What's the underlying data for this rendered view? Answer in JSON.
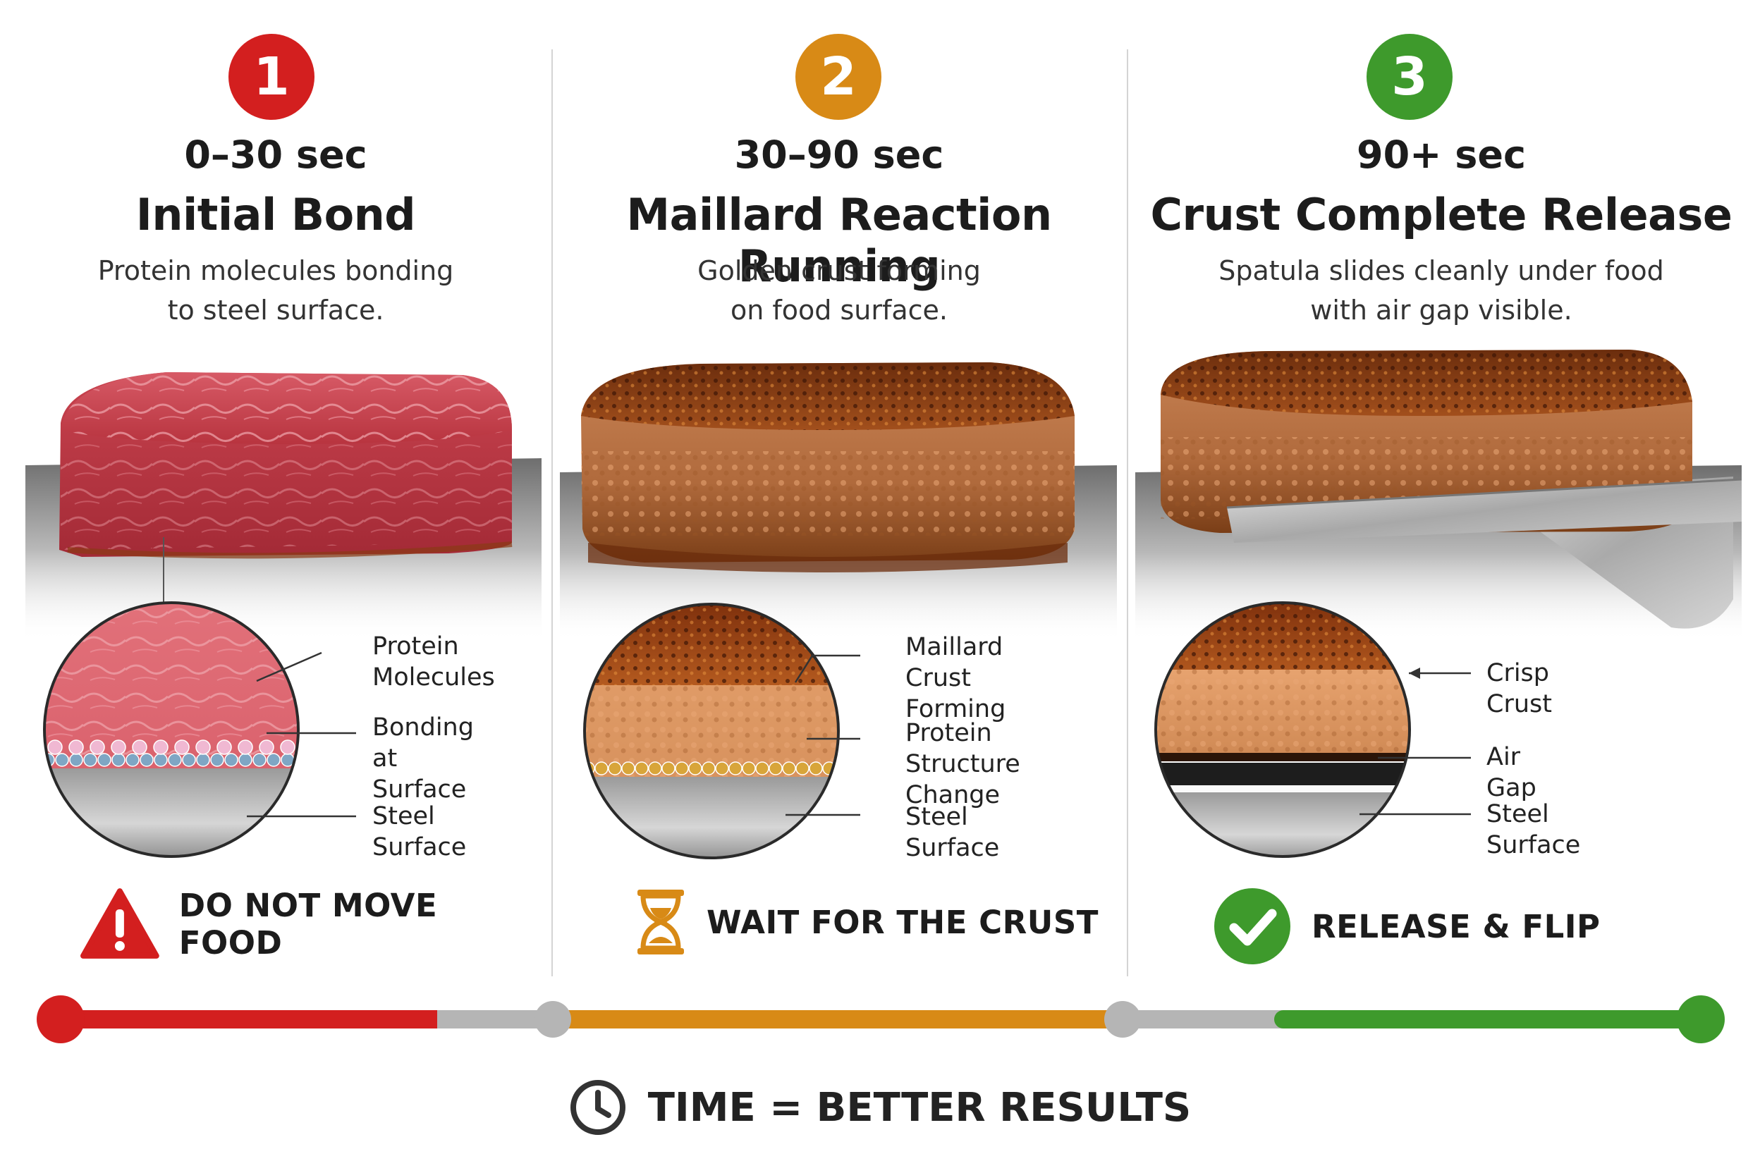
{
  "colors": {
    "red": "#d31f1f",
    "orange": "#d88a16",
    "green": "#3e9a2c",
    "track": "#b5b5b5"
  },
  "stages": [
    {
      "number": "1",
      "time": "0–30 sec",
      "title": "Initial Bond",
      "desc_lines": [
        "Protein molecules bonding",
        "to steel surface."
      ],
      "callouts": [
        [
          "Protein",
          "Molecules"
        ],
        [
          "Bonding at",
          "Surface"
        ],
        [
          "Steel Surface"
        ]
      ],
      "action": "DO NOT MOVE FOOD",
      "action_icon": "warning-icon"
    },
    {
      "number": "2",
      "time": "30–90 sec",
      "title": "Maillard Reaction Running",
      "desc_lines": [
        "Golden crust forming",
        "on food surface."
      ],
      "callouts": [
        [
          "Maillard",
          "Crust Forming"
        ],
        [
          "Protein",
          "Structure Change"
        ],
        [
          "Steel Surface"
        ]
      ],
      "action": "WAIT FOR THE CRUST",
      "action_icon": "hourglass-icon"
    },
    {
      "number": "3",
      "time": "90+ sec",
      "title": "Crust Complete Release",
      "desc_lines": [
        "Spatula slides cleanly under food",
        "with air gap visible."
      ],
      "callouts": [
        [
          "Crisp Crust"
        ],
        [
          "Air Gap"
        ],
        [
          "Steel Surface"
        ]
      ],
      "action": "RELEASE & FLIP",
      "action_icon": "check-circle-icon"
    }
  ],
  "footer": {
    "text": "TIME = BETTER RESULTS",
    "icon": "clock-icon"
  }
}
